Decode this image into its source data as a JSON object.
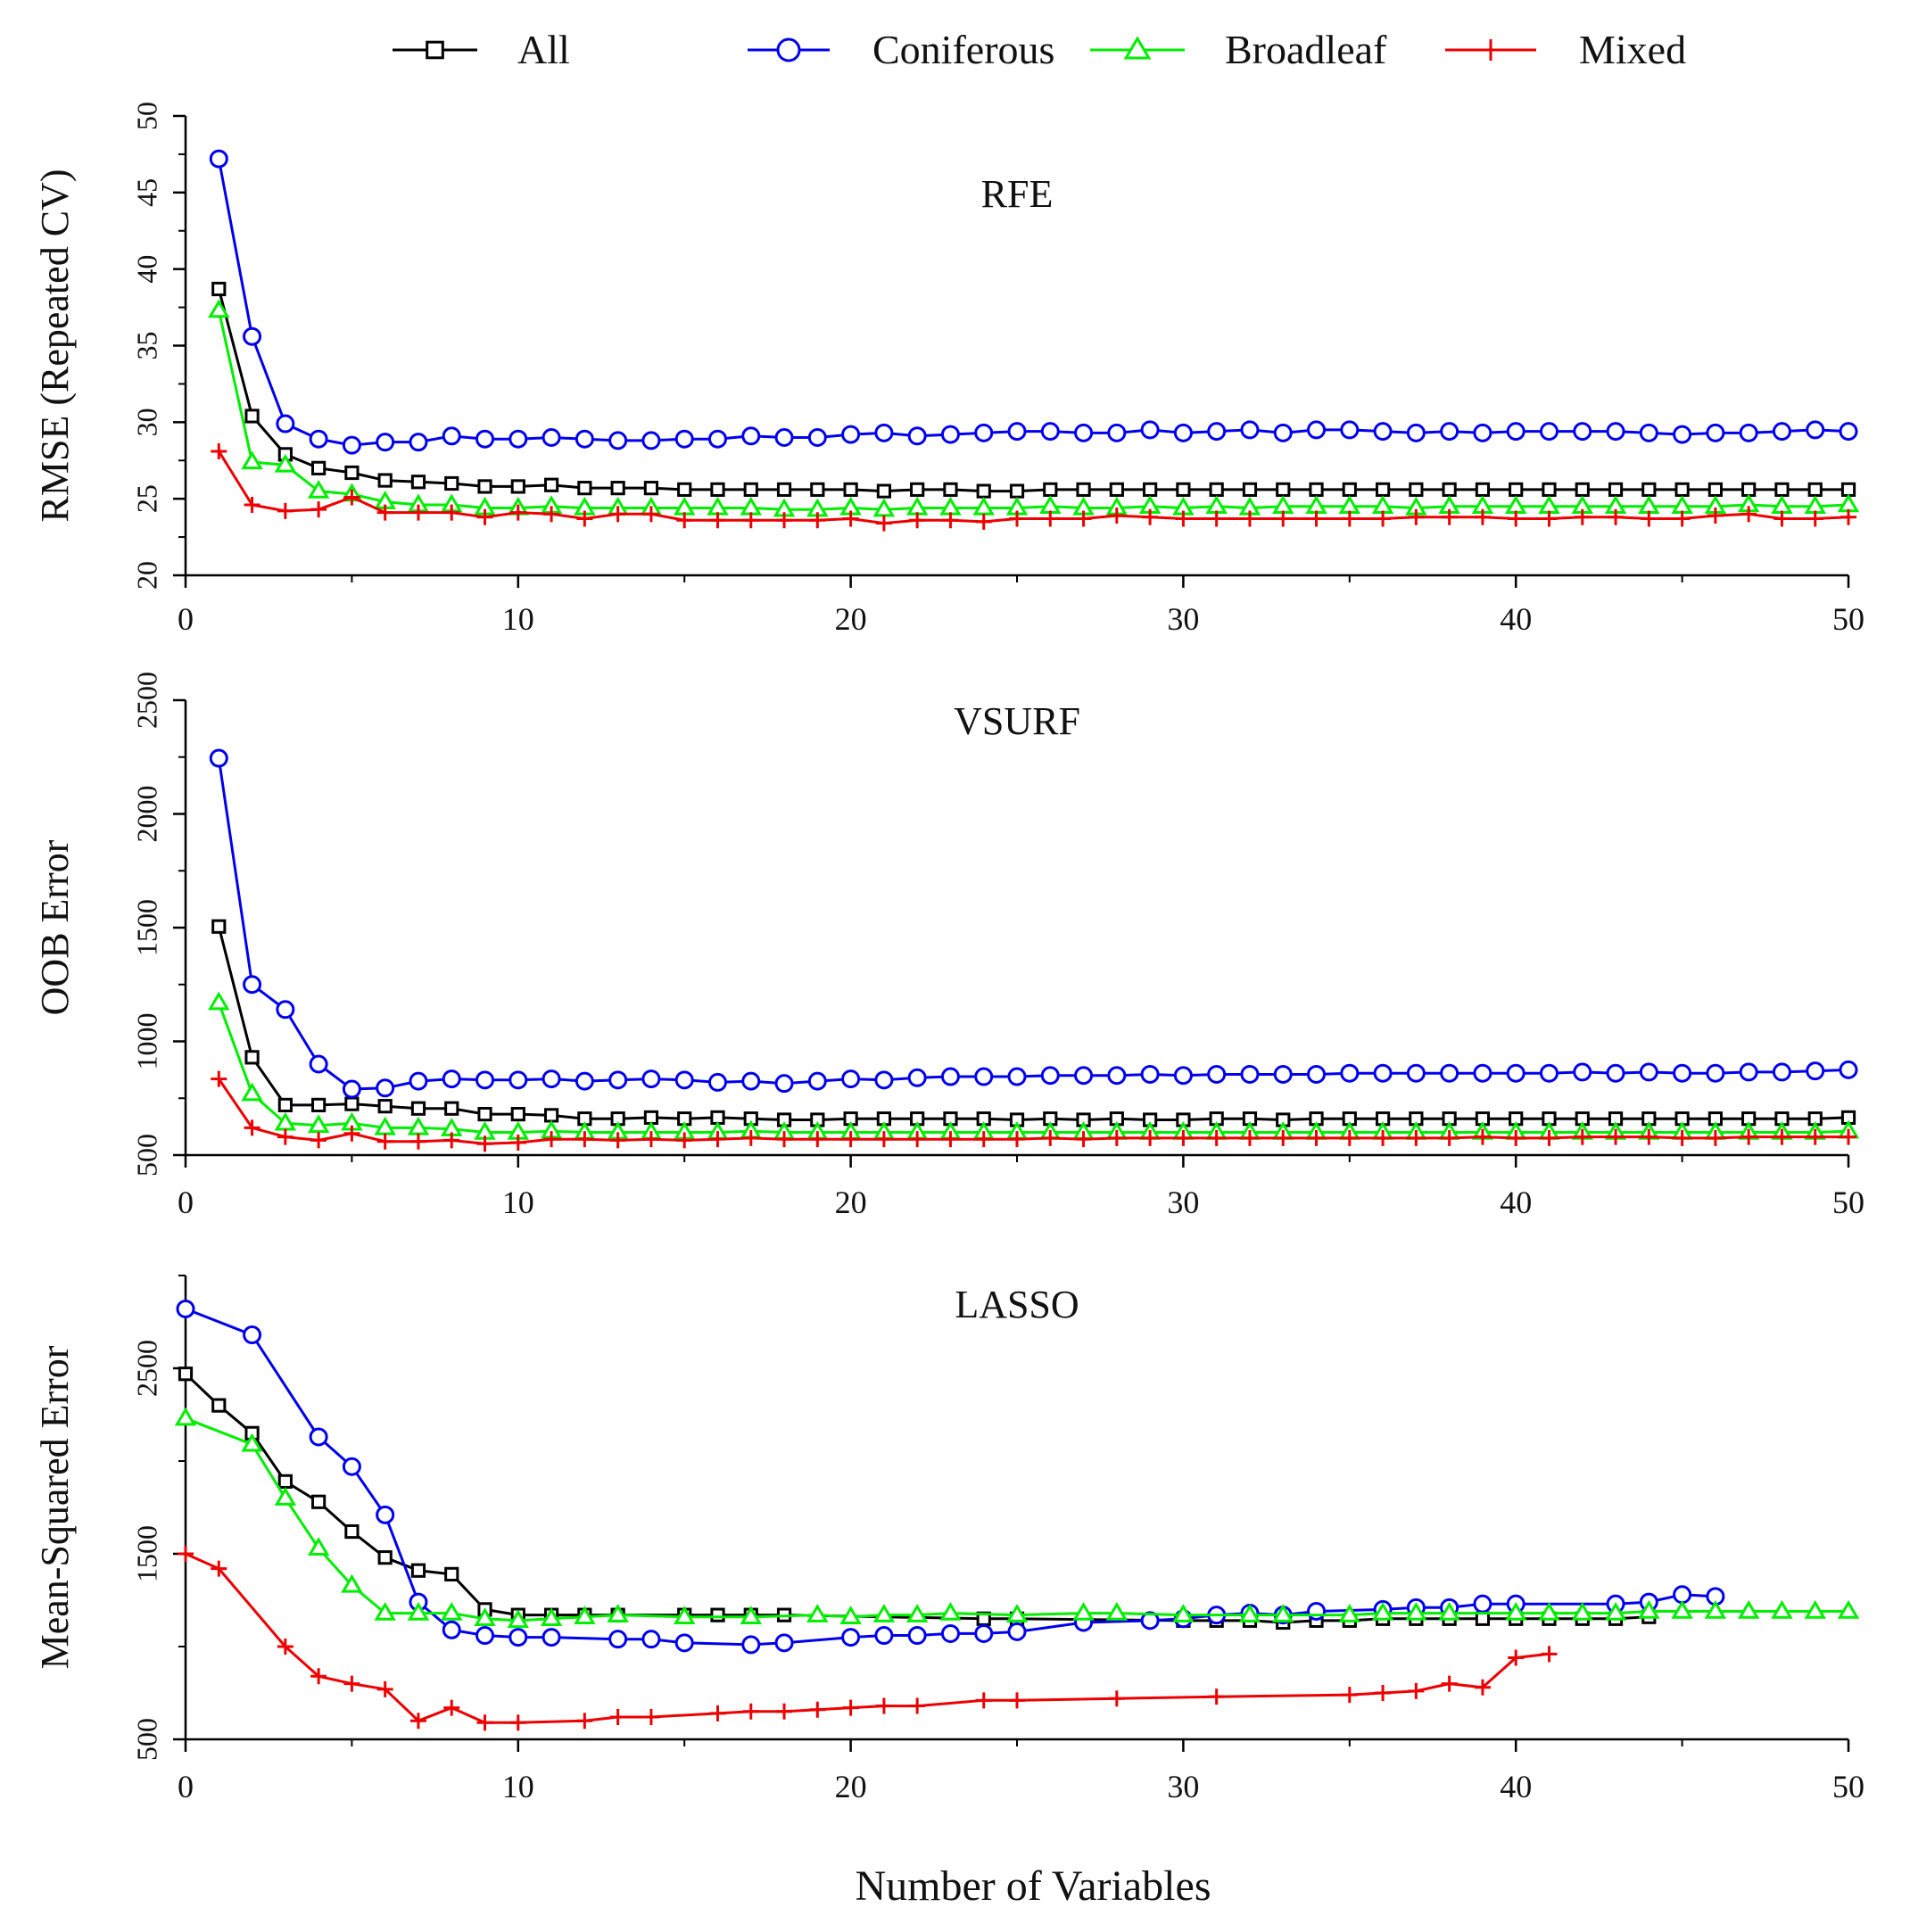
{
  "legend": {
    "placement": "top-center",
    "items": [
      {
        "label": "All",
        "color": "#000000",
        "marker": "square-open"
      },
      {
        "label": "Coniferous",
        "color": "#0000ee",
        "marker": "circle-open"
      },
      {
        "label": "Broadleaf",
        "color": "#00ee00",
        "marker": "triangle-open"
      },
      {
        "label": "Mixed",
        "color": "#ee0000",
        "marker": "plus"
      }
    ]
  },
  "shared_xlabel": "Number of Variables",
  "chart_data": [
    {
      "type": "line",
      "title": "RFE",
      "ylabel": "RMSE (Repeated CV)",
      "xlim": [
        0,
        50
      ],
      "ylim": [
        20,
        50
      ],
      "xticks": [
        0,
        10,
        20,
        30,
        40,
        50
      ],
      "yticks": [
        20,
        25,
        30,
        35,
        40,
        45,
        50
      ],
      "x": [
        1,
        2,
        3,
        4,
        5,
        6,
        7,
        8,
        9,
        10,
        11,
        12,
        13,
        14,
        15,
        16,
        17,
        18,
        19,
        20,
        21,
        22,
        23,
        24,
        25,
        26,
        27,
        28,
        29,
        30,
        31,
        32,
        33,
        34,
        35,
        36,
        37,
        38,
        39,
        40,
        41,
        42,
        43,
        44,
        45,
        46,
        47,
        48,
        49,
        50
      ],
      "series": [
        {
          "name": "All",
          "values": [
            38.7,
            30.4,
            27.9,
            27.0,
            26.7,
            26.2,
            26.1,
            26.0,
            25.8,
            25.8,
            25.9,
            25.7,
            25.7,
            25.7,
            25.6,
            25.6,
            25.6,
            25.6,
            25.6,
            25.6,
            25.5,
            25.6,
            25.6,
            25.5,
            25.5,
            25.6,
            25.6,
            25.6,
            25.6,
            25.6,
            25.6,
            25.6,
            25.6,
            25.6,
            25.6,
            25.6,
            25.6,
            25.6,
            25.6,
            25.6,
            25.6,
            25.6,
            25.6,
            25.6,
            25.6,
            25.6,
            25.6,
            25.6,
            25.6,
            25.6
          ]
        },
        {
          "name": "Coniferous",
          "values": [
            47.2,
            35.6,
            29.9,
            28.9,
            28.5,
            28.7,
            28.7,
            29.1,
            28.9,
            28.9,
            29.0,
            28.9,
            28.8,
            28.8,
            28.9,
            28.9,
            29.1,
            29.0,
            29.0,
            29.2,
            29.3,
            29.1,
            29.2,
            29.3,
            29.4,
            29.4,
            29.3,
            29.3,
            29.5,
            29.3,
            29.4,
            29.5,
            29.3,
            29.5,
            29.5,
            29.4,
            29.3,
            29.4,
            29.3,
            29.4,
            29.4,
            29.4,
            29.4,
            29.3,
            29.2,
            29.3,
            29.3,
            29.4,
            29.5,
            29.4
          ]
        },
        {
          "name": "Broadleaf",
          "values": [
            37.3,
            27.4,
            27.2,
            25.5,
            25.3,
            24.8,
            24.6,
            24.6,
            24.4,
            24.4,
            24.5,
            24.4,
            24.4,
            24.4,
            24.4,
            24.4,
            24.4,
            24.3,
            24.3,
            24.4,
            24.3,
            24.4,
            24.4,
            24.4,
            24.4,
            24.5,
            24.4,
            24.4,
            24.5,
            24.4,
            24.5,
            24.4,
            24.5,
            24.5,
            24.5,
            24.5,
            24.4,
            24.5,
            24.5,
            24.5,
            24.5,
            24.5,
            24.5,
            24.5,
            24.5,
            24.5,
            24.6,
            24.5,
            24.5,
            24.6
          ]
        },
        {
          "name": "Mixed",
          "values": [
            28.1,
            24.6,
            24.2,
            24.3,
            25.1,
            24.1,
            24.1,
            24.1,
            23.8,
            24.1,
            24.0,
            23.7,
            24.0,
            24.0,
            23.6,
            23.6,
            23.6,
            23.6,
            23.6,
            23.7,
            23.4,
            23.6,
            23.6,
            23.5,
            23.7,
            23.7,
            23.7,
            23.9,
            23.8,
            23.7,
            23.7,
            23.7,
            23.7,
            23.7,
            23.7,
            23.7,
            23.8,
            23.8,
            23.8,
            23.7,
            23.7,
            23.8,
            23.8,
            23.7,
            23.7,
            23.9,
            24.0,
            23.7,
            23.7,
            23.8
          ]
        }
      ]
    },
    {
      "type": "line",
      "title": "VSURF",
      "ylabel": "OOB Error",
      "xlim": [
        0,
        50
      ],
      "ylim": [
        500,
        2500
      ],
      "xticks": [
        0,
        10,
        20,
        30,
        40,
        50
      ],
      "yticks": [
        500,
        1000,
        1500,
        2000,
        2500
      ],
      "x": [
        1,
        2,
        3,
        4,
        5,
        6,
        7,
        8,
        9,
        10,
        11,
        12,
        13,
        14,
        15,
        16,
        17,
        18,
        19,
        20,
        21,
        22,
        23,
        24,
        25,
        26,
        27,
        28,
        29,
        30,
        31,
        32,
        33,
        34,
        35,
        36,
        37,
        38,
        39,
        40,
        41,
        42,
        43,
        44,
        45,
        46,
        47,
        48,
        49,
        50
      ],
      "series": [
        {
          "name": "All",
          "values": [
            1505,
            930,
            720,
            720,
            725,
            715,
            705,
            705,
            680,
            680,
            675,
            660,
            660,
            665,
            660,
            665,
            660,
            655,
            655,
            660,
            660,
            660,
            660,
            660,
            655,
            660,
            655,
            660,
            655,
            655,
            660,
            660,
            655,
            660,
            660,
            660,
            660,
            660,
            660,
            660,
            660,
            660,
            660,
            660,
            660,
            660,
            660,
            660,
            660,
            665
          ]
        },
        {
          "name": "Coniferous",
          "values": [
            2245,
            1250,
            1140,
            900,
            790,
            795,
            825,
            835,
            830,
            830,
            835,
            825,
            830,
            835,
            830,
            820,
            825,
            815,
            825,
            835,
            830,
            840,
            845,
            845,
            845,
            850,
            850,
            850,
            855,
            850,
            855,
            855,
            855,
            855,
            860,
            860,
            860,
            860,
            860,
            860,
            860,
            865,
            860,
            865,
            860,
            860,
            865,
            865,
            870,
            875
          ]
        },
        {
          "name": "Broadleaf",
          "values": [
            1170,
            770,
            640,
            630,
            640,
            620,
            620,
            615,
            600,
            600,
            605,
            600,
            600,
            600,
            600,
            600,
            605,
            600,
            600,
            600,
            600,
            600,
            600,
            600,
            600,
            600,
            600,
            600,
            600,
            600,
            600,
            600,
            600,
            600,
            600,
            600,
            600,
            600,
            600,
            600,
            600,
            600,
            600,
            600,
            600,
            600,
            600,
            600,
            600,
            605
          ]
        },
        {
          "name": "Mixed",
          "values": [
            835,
            620,
            580,
            565,
            595,
            560,
            560,
            565,
            550,
            555,
            570,
            570,
            565,
            570,
            565,
            570,
            575,
            570,
            570,
            570,
            570,
            570,
            570,
            570,
            570,
            575,
            570,
            575,
            575,
            575,
            575,
            575,
            575,
            575,
            575,
            575,
            575,
            575,
            580,
            575,
            575,
            580,
            580,
            580,
            575,
            575,
            580,
            580,
            580,
            580
          ]
        }
      ]
    },
    {
      "type": "line",
      "title": "LASSO",
      "ylabel": "Mean-Squared Error",
      "xlim": [
        0,
        50
      ],
      "ylim": [
        500,
        3000
      ],
      "xticks": [
        0,
        10,
        20,
        30,
        40,
        50
      ],
      "yticks": [
        500,
        1500,
        2500
      ],
      "series": [
        {
          "name": "All",
          "x": [
            0,
            1,
            2,
            3,
            4,
            5,
            6,
            7,
            8,
            9,
            10,
            11,
            12,
            13,
            15,
            16,
            17,
            18,
            24,
            25,
            30,
            31,
            32,
            33,
            34,
            35,
            36,
            37,
            38,
            39,
            40,
            41,
            42,
            43,
            44
          ],
          "values": [
            2470,
            2300,
            2150,
            1890,
            1780,
            1620,
            1480,
            1410,
            1390,
            1200,
            1170,
            1170,
            1170,
            1170,
            1170,
            1170,
            1170,
            1170,
            1150,
            1150,
            1140,
            1140,
            1140,
            1130,
            1140,
            1140,
            1150,
            1150,
            1150,
            1150,
            1150,
            1150,
            1150,
            1150,
            1160
          ]
        },
        {
          "name": "Coniferous",
          "x": [
            0,
            2,
            4,
            5,
            6,
            7,
            8,
            9,
            10,
            11,
            13,
            14,
            15,
            17,
            18,
            20,
            21,
            22,
            23,
            24,
            25,
            27,
            29,
            30,
            31,
            32,
            33,
            34,
            36,
            37,
            38,
            39,
            40,
            43,
            44,
            45,
            46
          ],
          "values": [
            2820,
            2680,
            2130,
            1970,
            1710,
            1240,
            1090,
            1060,
            1050,
            1050,
            1040,
            1040,
            1020,
            1010,
            1020,
            1050,
            1060,
            1060,
            1070,
            1070,
            1080,
            1130,
            1140,
            1150,
            1170,
            1180,
            1170,
            1190,
            1200,
            1210,
            1210,
            1230,
            1230,
            1230,
            1240,
            1280,
            1270
          ]
        },
        {
          "name": "Broadleaf",
          "x": [
            0,
            2,
            3,
            4,
            5,
            6,
            7,
            8,
            9,
            10,
            11,
            12,
            13,
            15,
            17,
            19,
            20,
            21,
            22,
            23,
            25,
            27,
            28,
            30,
            32,
            33,
            35,
            36,
            37,
            38,
            40,
            41,
            42,
            43,
            44,
            45,
            46,
            47,
            48,
            49,
            50
          ],
          "values": [
            2230,
            2090,
            1800,
            1530,
            1330,
            1180,
            1180,
            1180,
            1150,
            1140,
            1150,
            1160,
            1170,
            1160,
            1160,
            1170,
            1160,
            1170,
            1170,
            1180,
            1170,
            1180,
            1180,
            1170,
            1170,
            1170,
            1170,
            1180,
            1180,
            1180,
            1180,
            1180,
            1180,
            1180,
            1190,
            1190,
            1190,
            1190,
            1190,
            1190,
            1190
          ]
        },
        {
          "name": "Mixed",
          "x": [
            0,
            1,
            3,
            4,
            5,
            6,
            7,
            8,
            9,
            10,
            12,
            13,
            14,
            16,
            17,
            18,
            19,
            20,
            21,
            22,
            24,
            25,
            28,
            31,
            35,
            36,
            37,
            38,
            39,
            40,
            41
          ],
          "values": [
            1500,
            1420,
            1000,
            840,
            800,
            770,
            600,
            670,
            590,
            590,
            600,
            620,
            620,
            640,
            650,
            650,
            660,
            670,
            680,
            680,
            710,
            710,
            720,
            730,
            740,
            750,
            760,
            800,
            780,
            940,
            960
          ]
        }
      ]
    }
  ]
}
